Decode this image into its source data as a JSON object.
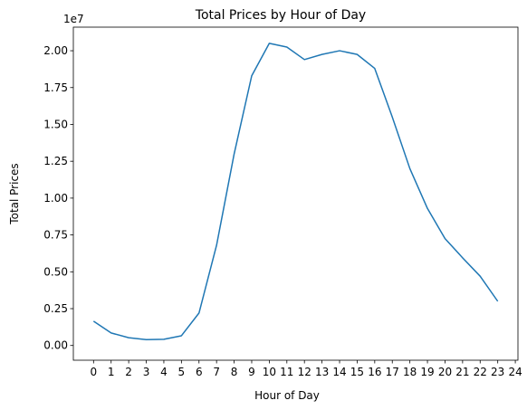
{
  "chart_data": {
    "type": "line",
    "title": "Total Prices by Hour of Day",
    "xlabel": "Hour of Day",
    "ylabel": "Total Prices",
    "y_offset_label": "1e7",
    "x_ticks": [
      "0",
      "1",
      "2",
      "3",
      "4",
      "5",
      "6",
      "7",
      "8",
      "9",
      "10",
      "11",
      "12",
      "13",
      "14",
      "15",
      "16",
      "17",
      "18",
      "19",
      "20",
      "21",
      "22",
      "23",
      "24"
    ],
    "y_ticks": [
      "0.00",
      "0.25",
      "0.50",
      "0.75",
      "1.00",
      "1.25",
      "1.50",
      "1.75",
      "2.00"
    ],
    "xlim": [
      -1.15,
      24.15
    ],
    "ylim": [
      -0.1,
      2.16
    ],
    "grid": false,
    "series": [
      {
        "color": "#1f77b4",
        "x": [
          0,
          1,
          2,
          3,
          4,
          5,
          6,
          7,
          8,
          9,
          10,
          11,
          12,
          13,
          14,
          15,
          16,
          17,
          18,
          19,
          20,
          21,
          22,
          23
        ],
        "y": [
          0.165,
          0.085,
          0.053,
          0.04,
          0.042,
          0.066,
          0.22,
          0.68,
          1.3,
          1.83,
          2.05,
          2.025,
          1.94,
          1.975,
          2.0,
          1.975,
          1.88,
          1.55,
          1.2,
          0.93,
          0.725,
          0.595,
          0.47,
          0.3
        ]
      }
    ]
  }
}
